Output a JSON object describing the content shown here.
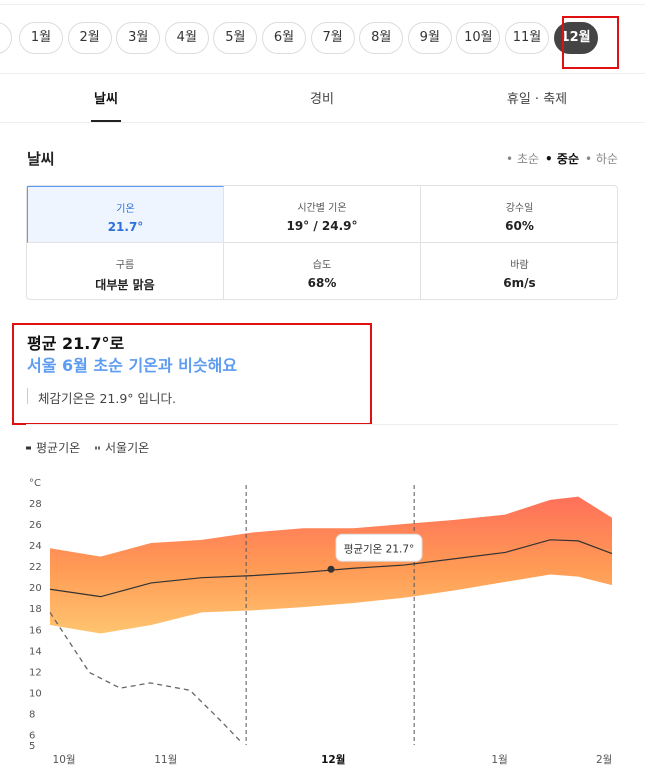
{
  "months": [
    "1월",
    "2월",
    "3월",
    "4월",
    "5월",
    "6월",
    "7월",
    "8월",
    "9월",
    "10월",
    "11월",
    "12월"
  ],
  "selected_month_index": 11,
  "tabs": [
    "날씨",
    "경비",
    "휴일 · 축제"
  ],
  "selected_tab_index": 0,
  "section_title": "날씨",
  "periods": [
    "초순",
    "중순",
    "하순"
  ],
  "selected_period_index": 1,
  "stats": [
    {
      "label": "기온",
      "value": "21.7°"
    },
    {
      "label": "시간별 기온",
      "value": "19° / 24.9°"
    },
    {
      "label": "강수일",
      "value": "60%"
    },
    {
      "label": "구름",
      "value": "대부분 맑음"
    },
    {
      "label": "습도",
      "value": "68%"
    },
    {
      "label": "바람",
      "value": "6m/s"
    }
  ],
  "selected_stat_index": 0,
  "summary": {
    "headline": "평균 21.7°로",
    "comparison": "서울 6월 초순 기온과 비슷해요",
    "note": "체감기온은 21.9° 입니다."
  },
  "chart_data": {
    "type": "line",
    "y_unit_label": "°C",
    "xlim": [
      0,
      100
    ],
    "xticks": [
      {
        "value": 2.5,
        "label": "10월"
      },
      {
        "value": 20.6,
        "label": "11월"
      },
      {
        "value": 50.4,
        "label": "12월"
      },
      {
        "value": 80,
        "label": "1월"
      },
      {
        "value": 98.6,
        "label": "2월"
      }
    ],
    "x_bold_index": 2,
    "ylim": [
      5,
      28
    ],
    "yticks": [
      5,
      6,
      8,
      10,
      12,
      14,
      16,
      18,
      20,
      22,
      24,
      26,
      28
    ],
    "range_markers": [
      34.9,
      64.8
    ],
    "band": {
      "x": [
        0,
        9,
        18,
        27,
        36,
        45,
        54,
        63,
        72,
        81,
        89,
        94,
        100
      ],
      "upper": [
        23.7,
        22.9,
        24.2,
        24.5,
        25.2,
        25.6,
        25.6,
        26.0,
        26.4,
        26.9,
        28.3,
        28.6,
        26.6
      ],
      "lower": [
        16.4,
        15.6,
        16.4,
        17.6,
        17.8,
        18.1,
        18.5,
        19.0,
        19.7,
        20.5,
        21.2,
        21.0,
        20.2
      ]
    },
    "series": [
      {
        "name": "평균기온",
        "color": "#333333",
        "x": [
          0,
          9,
          18,
          27,
          36,
          45,
          54,
          63,
          72,
          81,
          89,
          94,
          100
        ],
        "values": [
          19.8,
          19.1,
          20.4,
          20.9,
          21.1,
          21.4,
          21.8,
          22.1,
          22.7,
          23.3,
          24.5,
          24.4,
          23.2
        ]
      },
      {
        "name": "서울기온",
        "color": "#666666",
        "dashed": true,
        "x": [
          0,
          7,
          12.5,
          17.8,
          24.9,
          30.2,
          33.8
        ],
        "values": [
          17.6,
          11.9,
          10.4,
          10.9,
          10.2,
          7.4,
          5.4
        ]
      }
    ],
    "tooltip": {
      "label": "평균기온 21.7°",
      "x": 50,
      "value": 21.7
    }
  }
}
